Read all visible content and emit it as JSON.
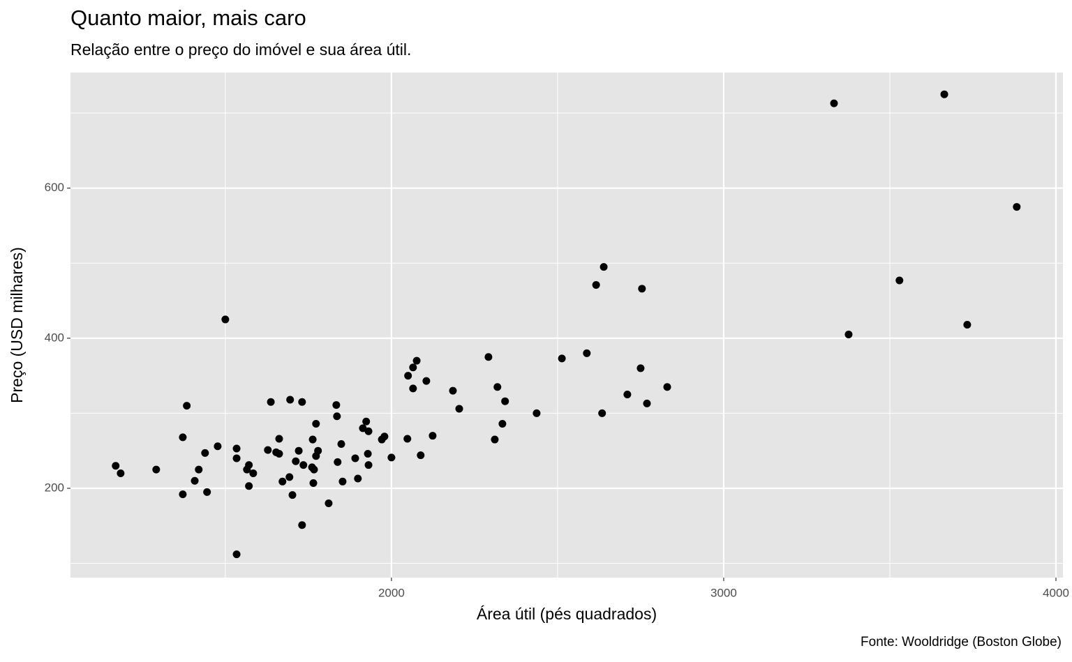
{
  "chart_data": {
    "type": "scatter",
    "title": "Quanto maior, mais caro",
    "subtitle": "Relação entre o preço do imóvel e sua área útil.",
    "x_label": "Área útil (pés quadrados)",
    "y_label": "Preço (USD milhares)",
    "caption": "Fonte: Wooldridge (Boston Globe)",
    "xlim": [
      1034,
      4021
    ],
    "ylim": [
      81,
      754
    ],
    "xticks": [
      2000,
      3000,
      4000
    ],
    "yticks": [
      200,
      400,
      600
    ],
    "x_minor_grid": [
      1500,
      2500,
      3500
    ],
    "y_minor_grid": [
      100,
      300,
      500,
      700
    ],
    "grid": true,
    "color": "#000000",
    "series": [
      {
        "x": [
          1170,
          1185,
          1292,
          1372,
          1372,
          1384,
          1408,
          1420,
          1439,
          1445,
          1477,
          1500,
          1534,
          1534,
          1534,
          1565,
          1571,
          1571,
          1584,
          1628,
          1637,
          1653,
          1662,
          1662,
          1672,
          1693,
          1695,
          1702,
          1712,
          1721,
          1731,
          1731,
          1735,
          1761,
          1763,
          1765,
          1767,
          1773,
          1773,
          1779,
          1811,
          1834,
          1836,
          1838,
          1849,
          1853,
          1891,
          1899,
          1914,
          1924,
          1931,
          1929,
          1931,
          1971,
          1979,
          2000,
          2048,
          2050,
          2065,
          2065,
          2076,
          2088,
          2105,
          2124,
          2185,
          2204,
          2292,
          2311,
          2319,
          2334,
          2342,
          2437,
          2513,
          2588,
          2616,
          2634,
          2639,
          2710,
          2750,
          2754,
          2769,
          2830,
          3332,
          3376,
          3529,
          3664,
          3733,
          3882
        ],
        "values": [
          230,
          220,
          225,
          268,
          192,
          310,
          210,
          225,
          247,
          195,
          256,
          425,
          253,
          240,
          112,
          225,
          231,
          203,
          220,
          251,
          315,
          248,
          246,
          266,
          209,
          215,
          318,
          191,
          236,
          250,
          315,
          151,
          231,
          228,
          265,
          207,
          225,
          243,
          286,
          250,
          180,
          311,
          296,
          235,
          259,
          209,
          240,
          213,
          280,
          289,
          276,
          246,
          231,
          265,
          269,
          241,
          266,
          350,
          361,
          333,
          370,
          244,
          343,
          270,
          330,
          306,
          375,
          265,
          335,
          286,
          316,
          300,
          373,
          380,
          471,
          300,
          495,
          325,
          360,
          466,
          313,
          335,
          713,
          405,
          477,
          725,
          418,
          575
        ]
      }
    ]
  }
}
